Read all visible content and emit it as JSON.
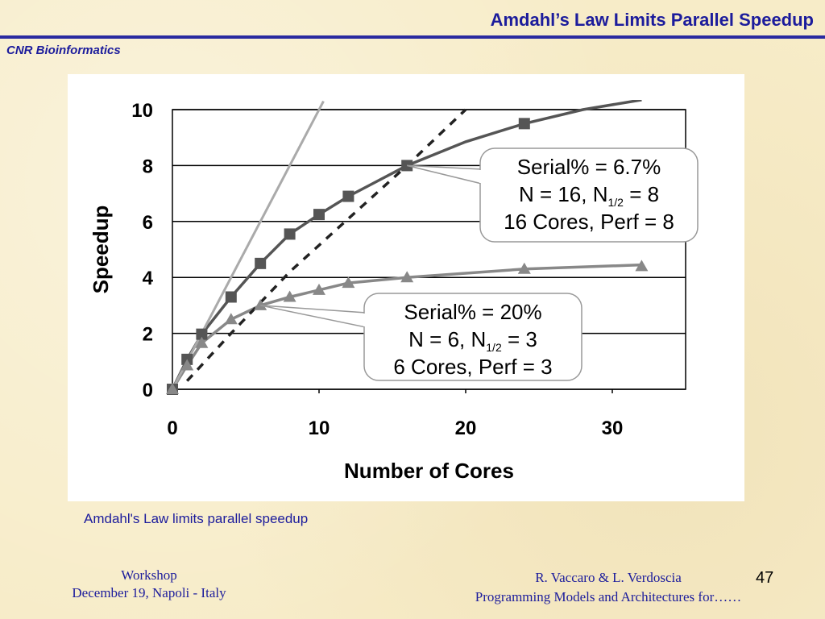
{
  "header": {
    "title": "Amdahl’s Law Limits Parallel Speedup",
    "org": "CNR Bioinformatics"
  },
  "caption": "Amdahl's Law limits parallel speedup",
  "footer": {
    "left_line1": "Workshop",
    "left_line2": "December 19, Napoli - Italy",
    "right_line1": "R. Vaccaro & L. Verdoscia",
    "right_line2": "Programming Models and Architectures for……",
    "page_number": "47"
  },
  "colors": {
    "title": "#1c1c9c",
    "rule": "#2a2aa0",
    "series_dark": "#555555",
    "series_light": "#888888",
    "ideal_line": "#aaaaaa"
  },
  "chart_data": {
    "type": "line",
    "title": "",
    "xlabel": "Number of Cores",
    "ylabel": "Speedup",
    "xlim": [
      0,
      35
    ],
    "ylim": [
      0,
      10
    ],
    "xticks": [
      0,
      10,
      20,
      30
    ],
    "yticks": [
      0,
      2,
      4,
      6,
      8,
      10
    ],
    "grid": "horizontal",
    "series": [
      {
        "style": "solid-square",
        "marker": "square",
        "x": [
          0,
          1,
          2,
          4,
          6,
          8,
          10,
          12,
          16,
          24
        ],
        "y": [
          0,
          1.07,
          1.97,
          3.3,
          4.5,
          5.55,
          6.25,
          6.9,
          8.0,
          9.5
        ],
        "curve_x": [
          0,
          1,
          2,
          4,
          6,
          8,
          10,
          12,
          14,
          16,
          20,
          24,
          28,
          32
        ],
        "curve_y": [
          0,
          1.07,
          1.97,
          3.3,
          4.5,
          5.55,
          6.25,
          6.9,
          7.45,
          8.0,
          8.85,
          9.5,
          10.0,
          10.35
        ]
      },
      {
        "style": "solid-triangle",
        "marker": "triangle",
        "x": [
          0,
          1,
          2,
          4,
          6,
          8,
          10,
          12,
          16,
          24,
          32
        ],
        "y": [
          0,
          0.85,
          1.65,
          2.5,
          3.0,
          3.3,
          3.55,
          3.8,
          4.0,
          4.3,
          4.4
        ],
        "curve_x": [
          0,
          1,
          2,
          4,
          6,
          8,
          10,
          12,
          16,
          24,
          32
        ],
        "curve_y": [
          0,
          0.85,
          1.65,
          2.5,
          3.0,
          3.3,
          3.55,
          3.8,
          4.0,
          4.3,
          4.45
        ]
      },
      {
        "style": "dashed",
        "marker": "none",
        "curve_x": [
          1,
          4,
          8,
          12,
          16,
          20
        ],
        "curve_y": [
          0.3,
          2.0,
          4.2,
          6.1,
          8.0,
          10.0
        ]
      },
      {
        "style": "ideal",
        "marker": "none",
        "curve_x": [
          0,
          10.3
        ],
        "curve_y": [
          0,
          10.3
        ]
      }
    ],
    "annotations": [
      {
        "line1": "Serial% = 6.7%",
        "line2_pre": "N = 16, N",
        "line2_sub": "1/2",
        "line2_post": " = 8",
        "line3": "16 Cores, Perf = 8",
        "points_to": [
          16,
          8.0
        ]
      },
      {
        "line1": "Serial% = 20%",
        "line2_pre": "N = 6, N",
        "line2_sub": "1/2",
        "line2_post": " = 3",
        "line3": "6 Cores, Perf = 3",
        "points_to": [
          6,
          3.0
        ]
      }
    ]
  }
}
